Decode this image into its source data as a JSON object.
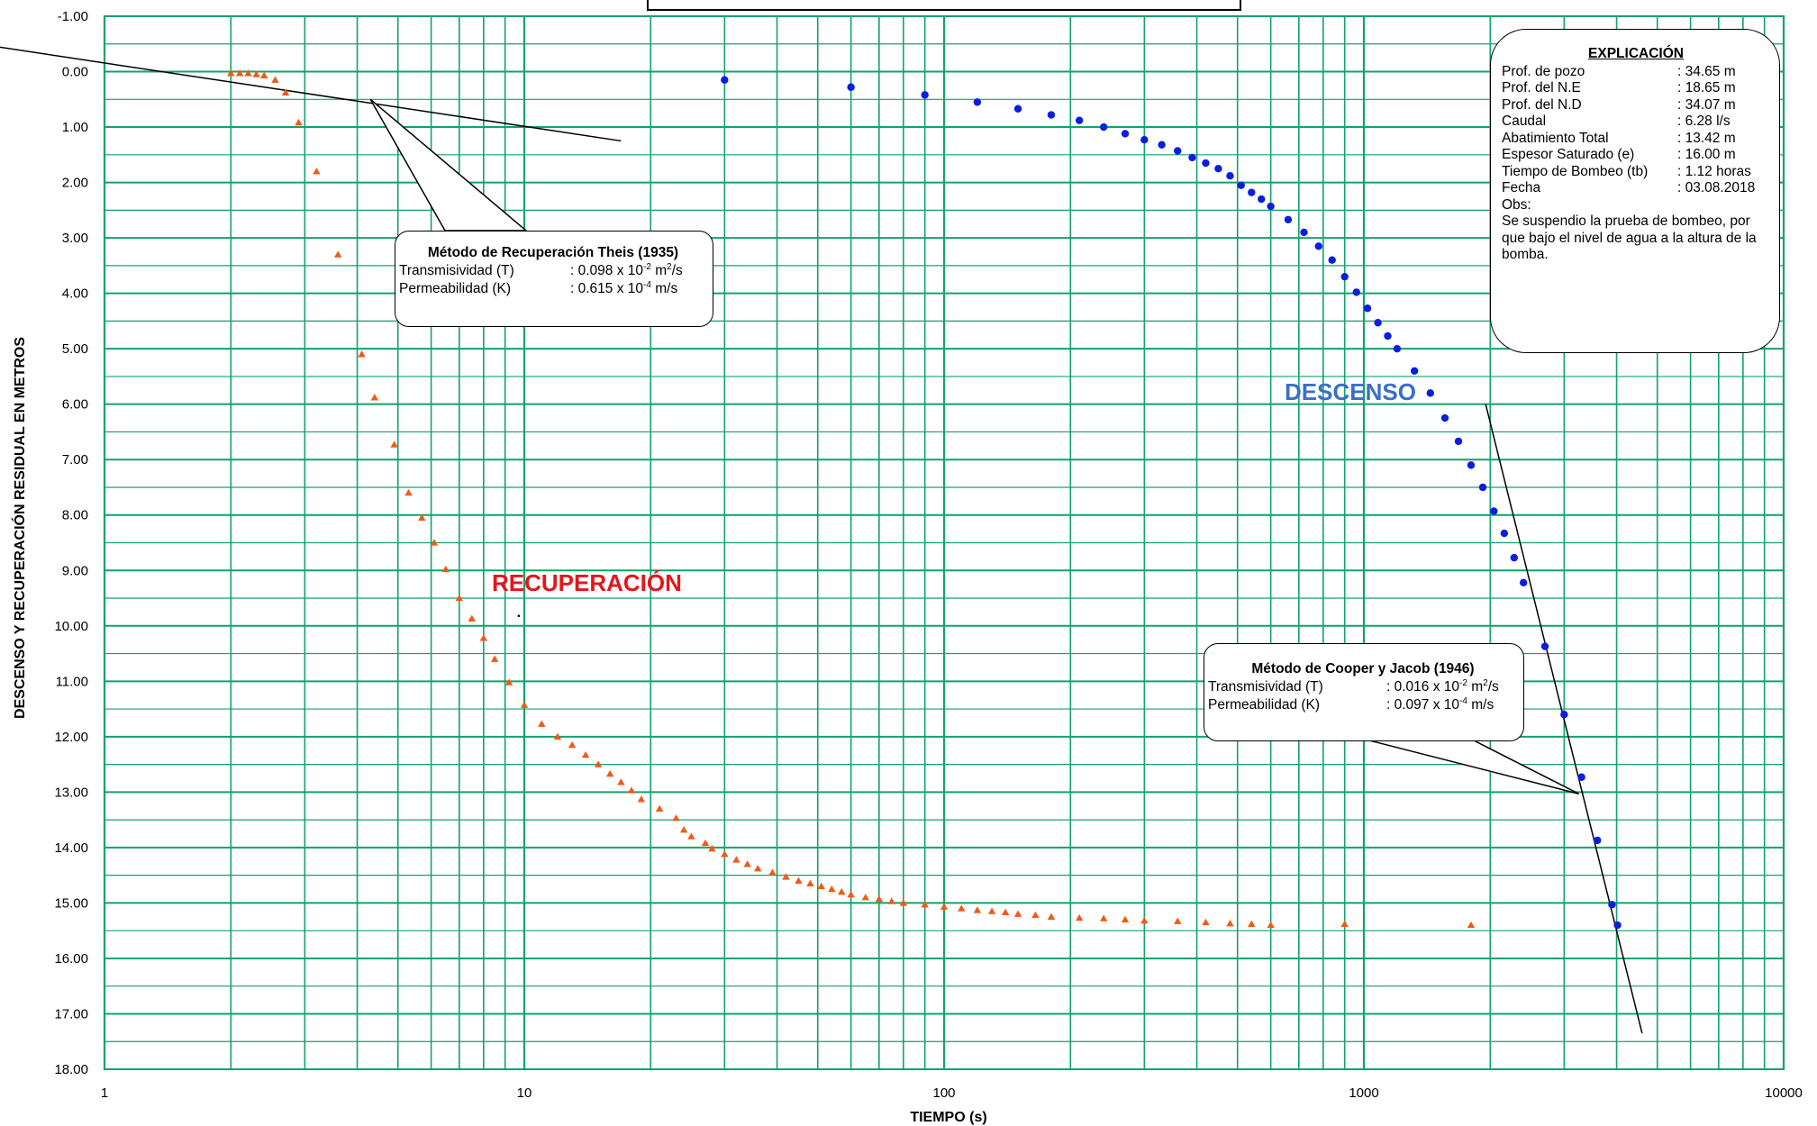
{
  "chart_data": {
    "type": "scatter",
    "xlabel": "TIEMPO (s)",
    "ylabel": "DESCENSO Y RECUPERACIÓN RESIDUAL EN METROS",
    "x_scale": "log",
    "xlim": [
      1,
      10000
    ],
    "ylim": [
      -1,
      18
    ],
    "y_inverted": true,
    "grid": true,
    "x_tick_labels": [
      "1",
      "10",
      "100",
      "1000",
      "10000"
    ],
    "y_tick_labels": [
      "-1.00",
      "0.00",
      "1.00",
      "2.00",
      "3.00",
      "4.00",
      "5.00",
      "6.00",
      "7.00",
      "8.00",
      "9.00",
      "10.00",
      "11.00",
      "12.00",
      "13.00",
      "14.00",
      "15.00",
      "16.00",
      "17.00",
      "18.00"
    ],
    "series": [
      {
        "name": "DESCENSO",
        "color": "#0a1ee0",
        "marker": "circle",
        "x": [
          30,
          60,
          90,
          120,
          150,
          180,
          210,
          240,
          270,
          300,
          330,
          360,
          390,
          420,
          450,
          480,
          510,
          540,
          570,
          600,
          660,
          720,
          780,
          840,
          900,
          960,
          1020,
          1080,
          1140,
          1200,
          1320,
          1440,
          1560,
          1680,
          1800,
          1920,
          2040,
          2160,
          2280,
          2400,
          2700,
          3000,
          3300,
          3600,
          3900,
          4020
        ],
        "y": [
          0.15,
          0.28,
          0.42,
          0.55,
          0.67,
          0.78,
          0.88,
          1.0,
          1.12,
          1.23,
          1.32,
          1.43,
          1.55,
          1.65,
          1.75,
          1.88,
          2.05,
          2.18,
          2.3,
          2.43,
          2.67,
          2.9,
          3.15,
          3.4,
          3.7,
          3.98,
          4.27,
          4.53,
          4.77,
          5.0,
          5.4,
          5.8,
          6.25,
          6.67,
          7.1,
          7.5,
          7.93,
          8.33,
          8.77,
          9.22,
          10.37,
          11.6,
          12.73,
          13.87,
          15.03,
          15.4
        ]
      },
      {
        "name": "RECUPERACIÓN",
        "color": "#f05a14",
        "marker": "triangle",
        "x": [
          2.0,
          2.1,
          2.2,
          2.3,
          2.4,
          2.55,
          2.7,
          2.9,
          3.2,
          3.6,
          4.1,
          4.4,
          4.9,
          5.3,
          5.7,
          6.1,
          6.5,
          7.0,
          7.5,
          8.0,
          8.5,
          9.2,
          10.0,
          11.0,
          12.0,
          13.0,
          14.0,
          15.0,
          16.0,
          17.0,
          18.0,
          19.0,
          21.0,
          23.0,
          24.0,
          25.0,
          27.0,
          28.0,
          30.0,
          32.0,
          34.0,
          36.0,
          39.0,
          42.0,
          45.0,
          48.0,
          51.0,
          54.0,
          57.0,
          60.0,
          65.0,
          70.0,
          75.0,
          80.0,
          90.0,
          100.0,
          110.0,
          120.0,
          130.0,
          140.0,
          150.0,
          165.0,
          180.0,
          210.0,
          240.0,
          270.0,
          300.0,
          360.0,
          420.0,
          480.0,
          540.0,
          600.0,
          900.0,
          1800.0
        ],
        "y": [
          0.03,
          0.03,
          0.03,
          0.05,
          0.07,
          0.15,
          0.38,
          0.92,
          1.8,
          3.3,
          5.1,
          5.88,
          6.73,
          7.6,
          8.05,
          8.5,
          8.98,
          9.5,
          9.87,
          10.22,
          10.6,
          11.02,
          11.43,
          11.77,
          12.0,
          12.15,
          12.33,
          12.5,
          12.67,
          12.82,
          12.97,
          13.13,
          13.3,
          13.47,
          13.68,
          13.8,
          13.92,
          14.02,
          14.12,
          14.22,
          14.3,
          14.38,
          14.45,
          14.53,
          14.6,
          14.65,
          14.7,
          14.75,
          14.8,
          14.85,
          14.9,
          14.93,
          14.97,
          15.0,
          15.03,
          15.07,
          15.1,
          15.13,
          15.15,
          15.17,
          15.2,
          15.22,
          15.25,
          15.27,
          15.28,
          15.3,
          15.32,
          15.33,
          15.35,
          15.37,
          15.38,
          15.4,
          15.38,
          15.4
        ]
      }
    ],
    "fit_lines": [
      {
        "name": "theis-fit",
        "x": [
          0.5,
          17.0
        ],
        "y": [
          -0.5,
          1.25
        ]
      },
      {
        "name": "cooper-jacob-fit",
        "x": [
          1950.0,
          4600.0
        ],
        "y": [
          6.0,
          17.35
        ]
      }
    ],
    "stray_point": {
      "x": 9.7,
      "y": 9.82
    }
  },
  "labels": {
    "descenso": "DESCENSO",
    "recuperacion": "RECUPERACIÓN"
  },
  "theis": {
    "title": "Método de Recuperación  Theis (1935)",
    "t_label": "Transmisividad (T)",
    "t_value_prefix": ": 0.098 x 10",
    "t_exp": "-2",
    "t_unit": " m",
    "t_unit_exp": "2",
    "t_unit_suffix": "/s",
    "k_label": "Permeabilidad (K)",
    "k_value_prefix": ": 0.615 x 10",
    "k_exp": "-4",
    "k_unit": " m/s"
  },
  "cooper_jacob": {
    "title": "Método de Cooper  y Jacob (1946)",
    "t_label": "Transmisividad (T)",
    "t_value_prefix": ": 0.016 x 10",
    "t_exp": "-2",
    "t_unit": " m",
    "t_unit_exp": "2",
    "t_unit_suffix": "/s",
    "k_label": "Permeabilidad (K)",
    "k_value_prefix": ": 0.097 x 10",
    "k_exp": "-4",
    "k_unit": " m/s"
  },
  "explicacion": {
    "title": "EXPLICACIÓN",
    "rows": [
      {
        "label": "Prof. de pozo",
        "value": ": 34.65 m"
      },
      {
        "label": "Prof. del N.E",
        "value": ": 18.65 m"
      },
      {
        "label": "Prof. del N.D",
        "value": ": 34.07 m"
      },
      {
        "label": "Caudal",
        "value": ": 6.28 l/s"
      },
      {
        "label": "Abatimiento Total",
        "value": ": 13.42 m"
      },
      {
        "label": "Espesor Saturado (e)",
        "value": ": 16.00 m"
      },
      {
        "label": "Tiempo de Bombeo (tb)",
        "value": ": 1.12 horas"
      },
      {
        "label": "Fecha",
        "value": ": 03.08.2018"
      }
    ],
    "obs_label": "Obs:",
    "obs_text": "Se suspendio la prueba de bombeo, por que bajo el nivel de agua a la altura de la bomba."
  },
  "colors": {
    "grid": "#11a36b",
    "descenso_label": "#3b6fc6",
    "recuperacion_label": "#e8141b"
  }
}
